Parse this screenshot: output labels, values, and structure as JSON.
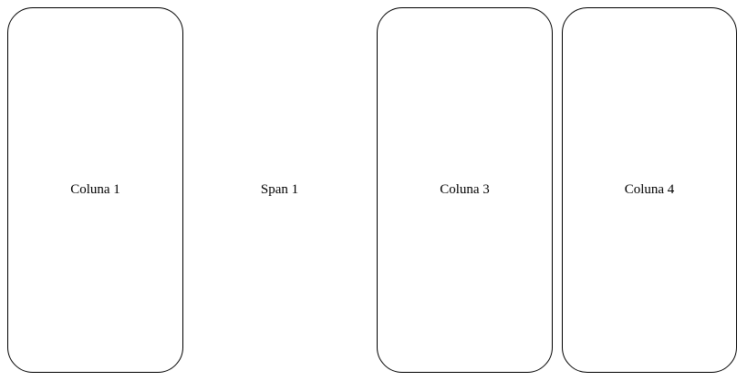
{
  "columns": [
    {
      "label": "Coluna 1"
    },
    {
      "label": "Span 1"
    },
    {
      "label": "Coluna 3"
    },
    {
      "label": "Coluna 4"
    }
  ],
  "colors": {
    "background": "#ffffff",
    "border": "#000000",
    "text": "#000000"
  }
}
